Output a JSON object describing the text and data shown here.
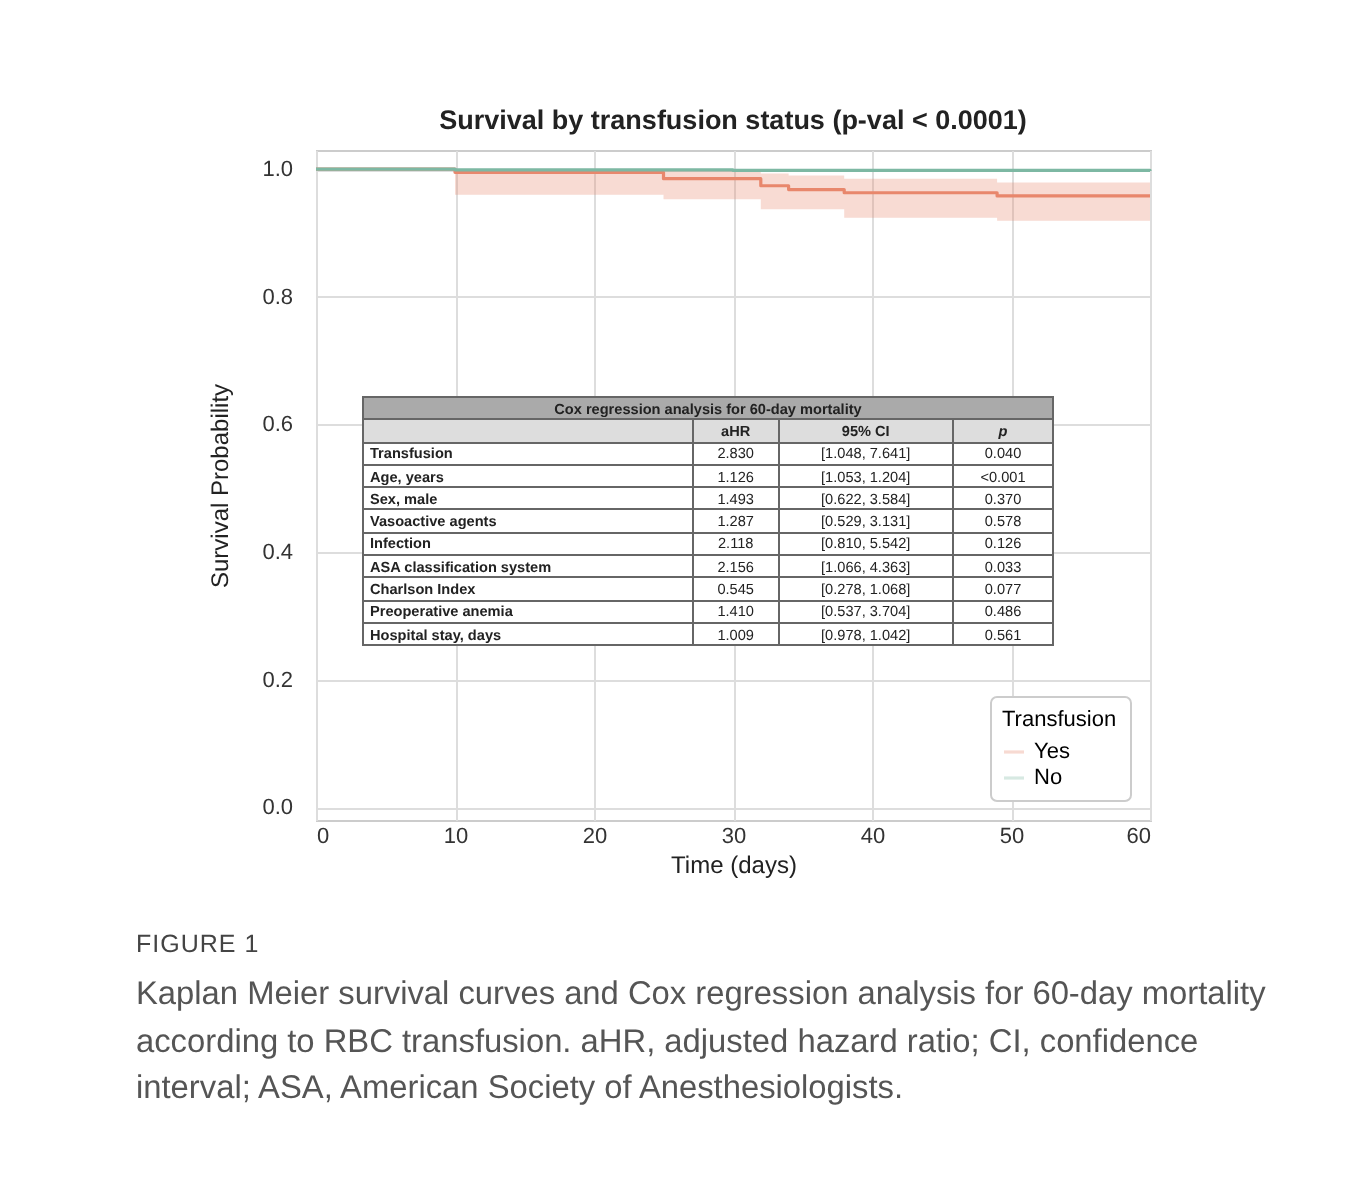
{
  "chart_data": {
    "type": "step",
    "title": "Survival by transfusion status (p-val < 0.0001)",
    "xlabel": "Time (days)",
    "ylabel": "Survival Probability",
    "legend_title": "Transfusion",
    "legend": "bottom right",
    "grid": true,
    "xlim": [
      0,
      60
    ],
    "xticks": [
      0,
      10,
      20,
      30,
      40,
      50,
      60
    ],
    "ylim": [
      -0.02,
      1.03
    ],
    "yticks": [
      {
        "value": 0,
        "label": "0.0"
      },
      0.2,
      0.4,
      0.6,
      0.8,
      {
        "value": 1,
        "label": "1.0"
      }
    ],
    "series": [
      {
        "name": "Yes",
        "color": "#e8876c",
        "x": [
          0,
          10,
          25,
          32,
          34,
          38,
          49,
          60
        ],
        "values": [
          1,
          0.995,
          0.985,
          0.974,
          0.968,
          0.963,
          0.958,
          0.958
        ],
        "lower": [
          1,
          0.96,
          0.953,
          0.937,
          0.937,
          0.924,
          0.919,
          0.919
        ],
        "upper": [
          1,
          1,
          0.997,
          0.993,
          0.99,
          0.985,
          0.979,
          0.979
        ]
      },
      {
        "name": "No",
        "color": "#7db8a3",
        "x": [
          0,
          10,
          30,
          60
        ],
        "values": [
          1,
          0.999,
          0.998,
          0.997
        ]
      }
    ],
    "annotations": [
      "Cox regression analysis for 60-day mortality",
      "aHR",
      "95% CI",
      "p",
      "Transfusion",
      "2.830",
      "[1.048, 7.641]",
      "0.040",
      "Age, years",
      "1.126",
      "[1.053, 1.204]",
      "<0.001",
      "Sex, male",
      "1.493",
      "[0.622, 3.584]",
      "0.370",
      "Vasoactive agents",
      "1.287",
      "[0.529, 3.131]",
      "0.578",
      "Infection",
      "2.118",
      "[0.810, 5.542]",
      "0.126",
      "ASA classification system",
      "2.156",
      "[1.066, 4.363]",
      "0.033",
      "Charlson Index",
      "0.545",
      "[0.278, 1.068]",
      "0.077",
      "Preoperative anemia",
      "1.410",
      "[0.537, 3.704]",
      "0.486",
      "Hospital stay, days",
      "1.009",
      "[0.978, 1.042]",
      "0.561",
      "FIGURE 1",
      "Kaplan Meier survival curves and Cox regression analysis for 60-day mortality according to RBC transfusion. aHR, adjusted hazard ratio; CI, confidence interval; ASA, American Society of Anesthesiologists."
    ]
  }
}
